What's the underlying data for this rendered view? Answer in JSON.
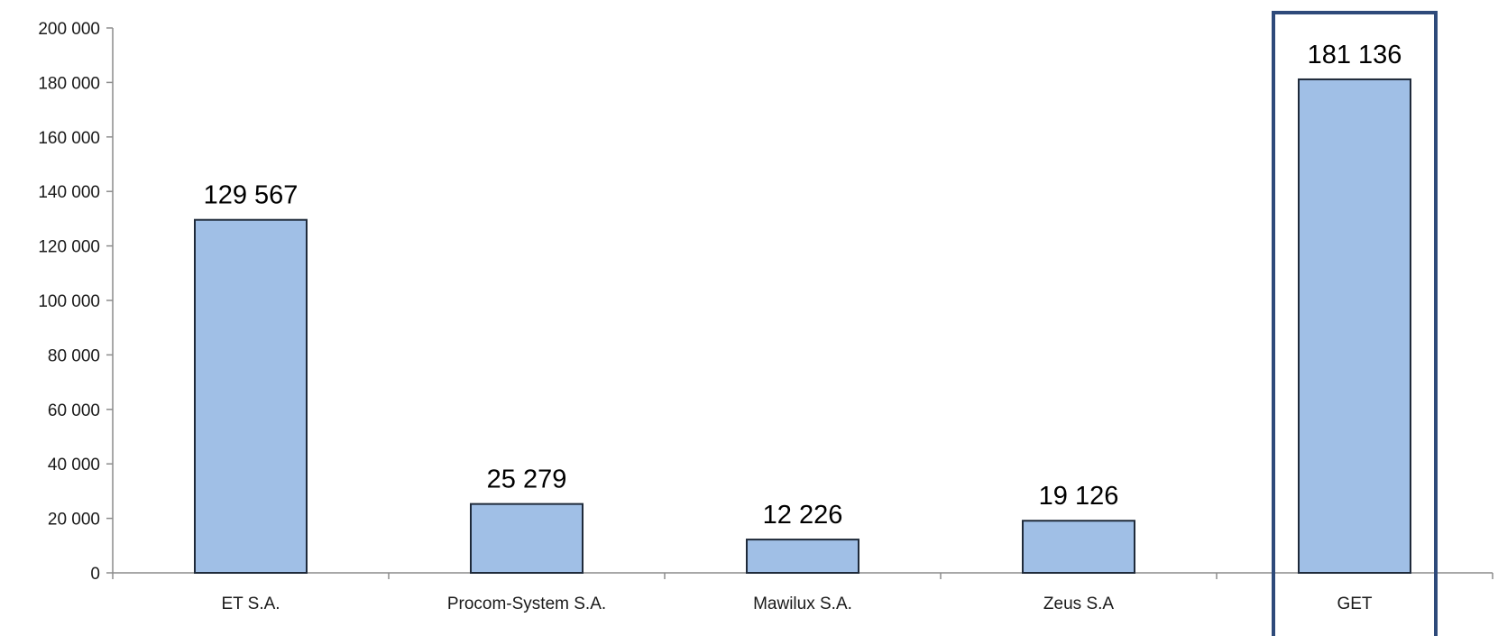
{
  "chart_data": {
    "type": "bar",
    "title": "",
    "xlabel": "",
    "ylabel": "",
    "categories": [
      "ET S.A.",
      "Procom-System S.A.",
      "Mawilux S.A.",
      "Zeus S.A",
      "GET"
    ],
    "values": [
      129567,
      25279,
      12226,
      19126,
      181136
    ],
    "value_labels": [
      "129 567",
      "25 279",
      "12 226",
      "19 126",
      "181 136"
    ],
    "ylim": [
      0,
      200000
    ],
    "yticks": [
      0,
      20000,
      40000,
      60000,
      80000,
      100000,
      120000,
      140000,
      160000,
      180000,
      200000
    ],
    "ytick_labels": [
      "0",
      "20 000",
      "40 000",
      "60 000",
      "80 000",
      "100 000",
      "120 000",
      "140 000",
      "160 000",
      "180 000",
      "200 000"
    ],
    "grid": false,
    "legend": "none",
    "highlighted_category": "GET",
    "colors": {
      "bar_fill": "#a0bfe6",
      "bar_stroke": "#1f2a3a",
      "highlight_frame": "#2e4a7a",
      "axis": "#8c8c8c"
    }
  }
}
